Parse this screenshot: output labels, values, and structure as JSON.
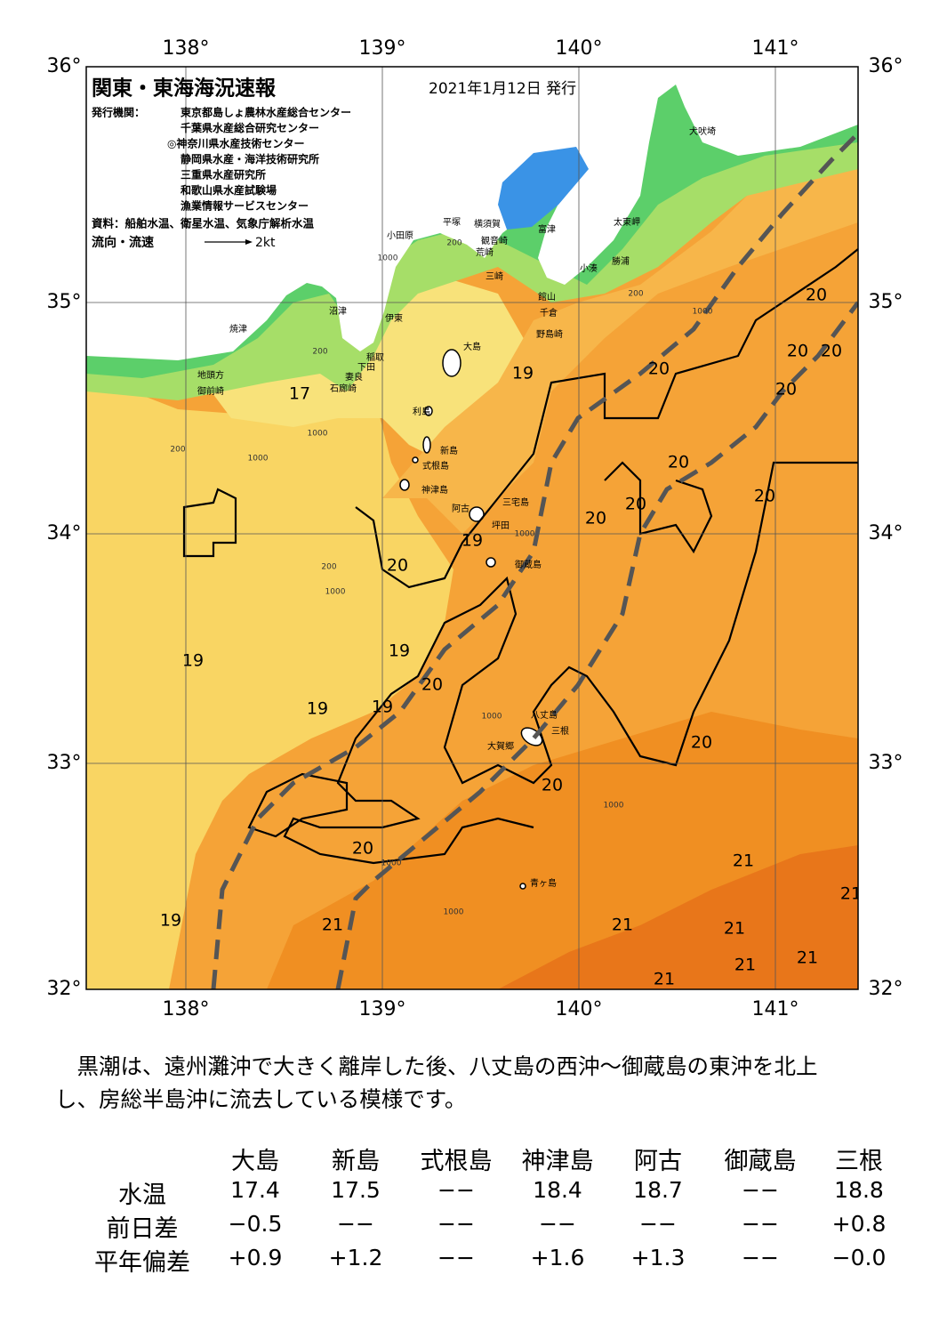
{
  "map": {
    "title": "関東・東海海況速報",
    "issue_date": "2021年1月12日 発行",
    "publisher_label": "発行機関：",
    "publishers": [
      "東京都島しょ農林水産総合センター",
      "千葉県水産総合研究センター",
      "◎神奈川県水産技術センター",
      "静岡県水産・海洋技術研究所",
      "三重県水産研究所",
      "和歌山県水産試験場",
      "漁業情報サービスセンター"
    ],
    "sources": "資料：船舶水温、衛星水温、気象庁解析水温",
    "flow_legend": {
      "label": "流向・流速",
      "unit": "2kt"
    },
    "lon_ticks": [
      {
        "value": 138,
        "label": "138°"
      },
      {
        "value": 139,
        "label": "139°"
      },
      {
        "value": 140,
        "label": "140°"
      },
      {
        "value": 141,
        "label": "141°"
      }
    ],
    "lat_ticks": [
      {
        "value": 36,
        "label": "36°"
      },
      {
        "value": 35,
        "label": "35°"
      },
      {
        "value": 34,
        "label": "34°"
      },
      {
        "value": 33,
        "label": "33°"
      },
      {
        "value": 32,
        "label": "32°"
      }
    ],
    "places": [
      "小田原",
      "平塚",
      "横須賀",
      "富津",
      "太東岬",
      "犬吠埼",
      "観音崎",
      "荒崎",
      "三崎",
      "小湊",
      "勝浦",
      "館山",
      "千倉",
      "野島崎",
      "沼津",
      "伊東",
      "焼津",
      "大島",
      "稲取",
      "下田",
      "地頭方",
      "妻良",
      "石廊崎",
      "御前崎",
      "利島",
      "新島",
      "式根島",
      "神津島",
      "三宅島",
      "阿古",
      "坪田",
      "御蔵島",
      "八丈島",
      "三根",
      "大賀郷",
      "青ヶ島"
    ],
    "isotherm_labels": [
      17,
      19,
      20,
      20,
      20,
      20,
      20,
      20,
      20,
      20,
      20,
      19,
      20,
      19,
      19,
      20,
      19,
      19,
      20,
      20,
      20,
      21,
      21,
      19,
      21,
      21,
      21,
      21,
      21,
      21
    ],
    "depth_labels": [
      200,
      1000,
      200,
      1000,
      200,
      1000,
      200,
      1000,
      200,
      1000,
      1000,
      1000,
      1000,
      1000,
      1000
    ]
  },
  "summary": [
    "　黒潮は、遠州灘沖で大きく離岸した後、八丈島の西沖～御蔵島の東沖を北上",
    "し、房総半島沖に流去している模様です。"
  ],
  "table": {
    "header": [
      "大島",
      "新島",
      "式根島",
      "神津島",
      "阿古",
      "御蔵島",
      "三根"
    ],
    "rows": [
      {
        "label": "水温",
        "cells": [
          "17.4",
          "17.5",
          "−−",
          "18.4",
          "18.7",
          "−−",
          "18.8"
        ]
      },
      {
        "label": "前日差",
        "cells": [
          "−0.5",
          "−−",
          "−−",
          "−−",
          "−−",
          "−−",
          "+0.8"
        ]
      },
      {
        "label": "平年偏差",
        "cells": [
          "+0.9",
          "+1.2",
          "−−",
          "+1.6",
          "+1.3",
          "−−",
          "−0.0"
        ]
      }
    ]
  }
}
